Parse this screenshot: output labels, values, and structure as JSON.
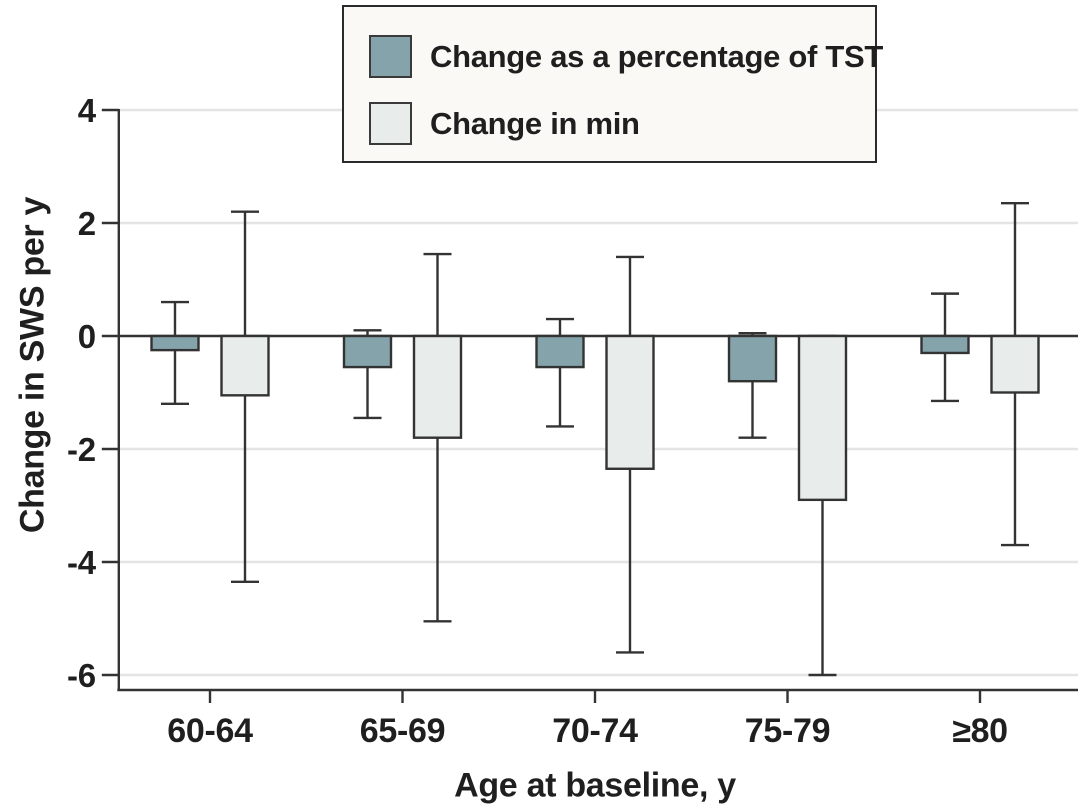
{
  "chart_data": {
    "type": "bar",
    "title": "",
    "xlabel": "Age at baseline, y",
    "ylabel": "Change in SWS per y",
    "categories": [
      "60-64",
      "65-69",
      "70-74",
      "75-79",
      "≥80"
    ],
    "series": [
      {
        "name": "Change as a percentage of TST",
        "color": "#85a3ab",
        "values": [
          -0.25,
          -0.55,
          -0.55,
          -0.8,
          -0.3
        ],
        "ci_low": [
          -1.2,
          -1.45,
          -1.6,
          -1.8,
          -1.15
        ],
        "ci_high": [
          0.6,
          0.1,
          0.3,
          0.05,
          0.75
        ]
      },
      {
        "name": "Change in min",
        "color": "#e8eceb",
        "values": [
          -1.05,
          -1.8,
          -2.35,
          -2.9,
          -1.0
        ],
        "ci_low": [
          -4.35,
          -5.05,
          -5.6,
          -6.0,
          -3.7
        ],
        "ci_high": [
          2.2,
          1.45,
          1.4,
          0.0,
          2.35
        ]
      }
    ],
    "y_ticks": [
      4,
      2,
      0,
      -2,
      -4,
      -6
    ],
    "ylim": [
      -6.3,
      4
    ],
    "grid": true,
    "error_bars": true,
    "legend_position": "top-center",
    "axis_color": "#333333",
    "grid_color": "#e4e4e2",
    "legend_bg": "#faf9f6"
  }
}
